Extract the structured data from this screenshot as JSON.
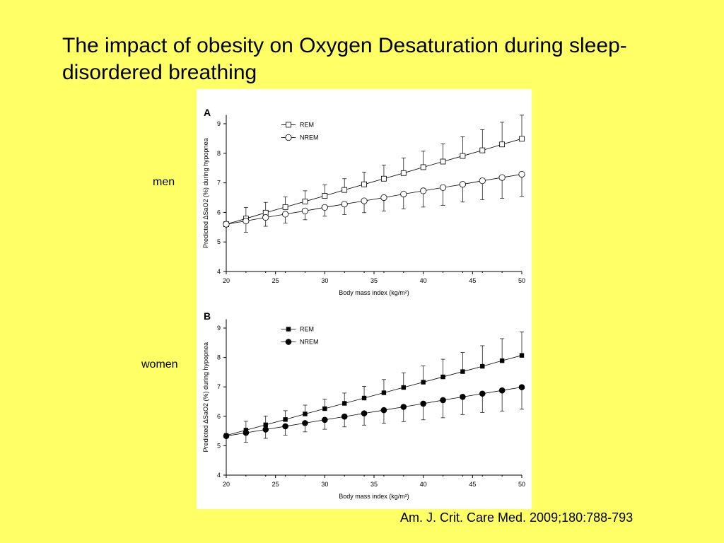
{
  "slide": {
    "title": "The impact of obesity on Oxygen Desaturation during sleep-disordered breathing",
    "label_men": "men",
    "label_women": "women",
    "citation": "Am. J. Crit. Care Med. 2009;180:788-793"
  },
  "chart_data": [
    {
      "type": "line",
      "panel_letter": "A",
      "xlabel": "Body mass index (kg/m²)",
      "ylabel": "Predicted ΔSaO2 (%) during hypopnea",
      "xlim": [
        20,
        50
      ],
      "ylim": [
        4,
        9.3
      ],
      "x_ticks": [
        20,
        25,
        30,
        35,
        40,
        45,
        50
      ],
      "y_ticks": [
        4,
        5,
        6,
        7,
        8,
        9
      ],
      "legend_position": "top-left",
      "grid": false,
      "x": [
        20,
        22,
        24,
        26,
        28,
        30,
        32,
        34,
        36,
        38,
        40,
        42,
        44,
        46,
        48,
        50
      ],
      "series": [
        {
          "name": "REM",
          "marker": "open-square",
          "values": [
            5.6,
            5.79,
            5.99,
            6.18,
            6.37,
            6.56,
            6.76,
            6.95,
            7.14,
            7.33,
            7.53,
            7.72,
            7.91,
            8.1,
            8.3,
            8.49
          ],
          "error_plus": [
            0.06,
            0.38,
            0.35,
            0.34,
            0.36,
            0.37,
            0.38,
            0.41,
            0.46,
            0.51,
            0.54,
            0.6,
            0.65,
            0.7,
            0.75,
            0.8
          ]
        },
        {
          "name": "NREM",
          "marker": "open-circle",
          "values": [
            5.6,
            5.71,
            5.83,
            5.94,
            6.05,
            6.17,
            6.28,
            6.39,
            6.5,
            6.62,
            6.73,
            6.84,
            6.95,
            7.07,
            7.18,
            7.29
          ],
          "error_minus": [
            0.06,
            0.38,
            0.3,
            0.3,
            0.3,
            0.3,
            0.35,
            0.4,
            0.45,
            0.5,
            0.55,
            0.6,
            0.6,
            0.64,
            0.7,
            0.75
          ]
        }
      ]
    },
    {
      "type": "line",
      "panel_letter": "B",
      "xlabel": "Body mass index (kg/m²)",
      "ylabel": "Predicted ΔSaO2 (%) during hypopnea",
      "xlim": [
        20,
        50
      ],
      "ylim": [
        4,
        9.3
      ],
      "x_ticks": [
        20,
        25,
        30,
        35,
        40,
        45,
        50
      ],
      "y_ticks": [
        4,
        5,
        6,
        7,
        8,
        9
      ],
      "legend_position": "top-left",
      "grid": false,
      "x": [
        20,
        22,
        24,
        26,
        28,
        30,
        32,
        34,
        36,
        38,
        40,
        42,
        44,
        46,
        48,
        50
      ],
      "series": [
        {
          "name": "REM",
          "marker": "filled-square",
          "values": [
            5.35,
            5.53,
            5.71,
            5.89,
            6.08,
            6.26,
            6.44,
            6.62,
            6.8,
            6.98,
            7.16,
            7.34,
            7.52,
            7.7,
            7.89,
            8.07
          ],
          "error_plus": [
            0.05,
            0.3,
            0.3,
            0.3,
            0.3,
            0.32,
            0.35,
            0.4,
            0.45,
            0.5,
            0.55,
            0.6,
            0.65,
            0.7,
            0.75,
            0.8
          ]
        },
        {
          "name": "NREM",
          "marker": "filled-circle",
          "values": [
            5.33,
            5.44,
            5.55,
            5.66,
            5.77,
            5.88,
            5.99,
            6.1,
            6.21,
            6.32,
            6.43,
            6.55,
            6.66,
            6.77,
            6.88,
            6.99
          ],
          "error_minus": [
            0.05,
            0.32,
            0.3,
            0.3,
            0.3,
            0.32,
            0.35,
            0.4,
            0.45,
            0.5,
            0.55,
            0.6,
            0.6,
            0.64,
            0.7,
            0.75
          ]
        }
      ]
    }
  ]
}
